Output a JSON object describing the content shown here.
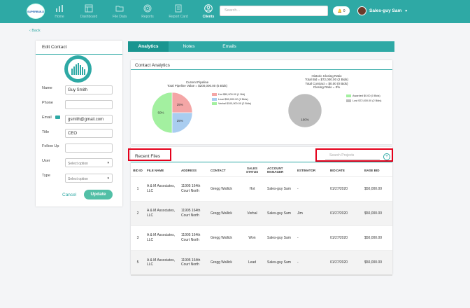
{
  "app": {
    "logo_text": "SUPERBUILD",
    "nav": [
      {
        "label": "Home",
        "icon": "home-chart-icon",
        "active": false
      },
      {
        "label": "Dashboard",
        "icon": "dashboard-icon",
        "active": false
      },
      {
        "label": "File Data",
        "icon": "folder-icon",
        "active": false
      },
      {
        "label": "Reports",
        "icon": "target-icon",
        "active": false
      },
      {
        "label": "Report Card",
        "icon": "report-card-icon",
        "active": false
      },
      {
        "label": "Clients",
        "icon": "user-icon",
        "active": true
      }
    ],
    "search_placeholder": "Search...",
    "notifications": "0",
    "user_name": "Sales-guy Sam"
  },
  "back_label": "Back",
  "edit_contact": {
    "title": "Edit Contact",
    "fields": {
      "name": {
        "label": "Name",
        "value": "Guy Smith"
      },
      "phone": {
        "label": "Phone",
        "value": ""
      },
      "email": {
        "label": "Email",
        "value": "gsmith@gmail.com"
      },
      "title": {
        "label": "Title",
        "value": "CEO"
      },
      "follow_up": {
        "label": "Follow Up",
        "value": ""
      },
      "user": {
        "label": "User",
        "value": "Select option"
      },
      "type": {
        "label": "Type",
        "value": "Select option"
      }
    },
    "cancel_label": "Cancel",
    "update_label": "Update"
  },
  "tabs": [
    {
      "label": "Analytics",
      "active": true
    },
    {
      "label": "Notes",
      "active": false
    },
    {
      "label": "Emails",
      "active": false
    }
  ],
  "contact_analytics": {
    "title": "Contact Analytics",
    "pipeline": {
      "title_line1": "Current Pipeline",
      "title_line2": "Total Pipeline Value = $200,000.00 (5 Bids)",
      "legend": [
        {
          "label": "Hot $50,000.00 (1 Bid)",
          "color": "#f4a6a6"
        },
        {
          "label": "Lead $50,000.00 (2 Bids)",
          "color": "#a9cdf0"
        },
        {
          "label": "Verbal $100,000.00 (2 Bids)",
          "color": "#a3f0a0"
        }
      ]
    },
    "closing": {
      "line1": "Historic Closing Ratio",
      "line2": "Total Bid = $72,000.00 (2 Bids)",
      "line3": "Total Contract = $0.00 (0 Bids)",
      "line4": "Closing Ratio = 0%",
      "legend": [
        {
          "label": "Awarded $0.00 (0 Bids)",
          "color": "#a3f0a0"
        },
        {
          "label": "Lost $72,000.00 (2 Bids)",
          "color": "#bdbdbd"
        }
      ]
    }
  },
  "chart_data": [
    {
      "type": "pie",
      "title": "Current Pipeline",
      "subtitle": "Total Pipeline Value = $200,000.00 (5 Bids)",
      "slices": [
        {
          "label": "Hot",
          "value": 25,
          "display": "25%",
          "color": "#f4a6a6"
        },
        {
          "label": "Lead",
          "value": 25,
          "display": "25%",
          "color": "#a9cdf0"
        },
        {
          "label": "Verbal",
          "value": 50,
          "display": "50%",
          "color": "#a3f0a0"
        }
      ]
    },
    {
      "type": "pie",
      "title": "Historic Closing Ratio",
      "slices": [
        {
          "label": "Awarded",
          "value": 0,
          "display": "",
          "color": "#a3f0a0"
        },
        {
          "label": "Lost",
          "value": 100,
          "display": "100%",
          "color": "#bdbdbd"
        }
      ]
    }
  ],
  "recent_files": {
    "title": "Recent Files",
    "search_placeholder": "Search Projects",
    "columns": [
      "BID ID",
      "FILE NAME",
      "ADDRESS",
      "CONTACT",
      "SALES STATUS",
      "ACCOUNT MANAGER",
      "ESTIMATOR",
      "BID DATE",
      "BASE BID"
    ],
    "rows": [
      {
        "bid": "1",
        "name": "A & M Associates, LLC",
        "addr": "11905 164th Court North",
        "contact": "Gregg Wallick",
        "status": "Hot",
        "am": "Sales-guy Sam",
        "est": "-",
        "date": "01/27/2020",
        "base": "$50,000.00"
      },
      {
        "bid": "2",
        "name": "A & M Associates, LLC",
        "addr": "11905 164th Court North",
        "contact": "Gregg Wallick",
        "status": "Verbal",
        "am": "Sales-guy Sam",
        "est": "Jim",
        "date": "01/27/2020",
        "base": "$50,000.00"
      },
      {
        "bid": "3",
        "name": "A & M Associates, LLC",
        "addr": "11905 164th Court North",
        "contact": "Gregg Wallick",
        "status": "Won",
        "am": "Sales-guy Sam",
        "est": "-",
        "date": "01/27/2020",
        "base": "$50,000.00"
      },
      {
        "bid": "5",
        "name": "A & M Associates, LLC",
        "addr": "11905 164th Court North",
        "contact": "Gregg Wallick",
        "status": "Lead",
        "am": "Sales-guy Sam",
        "est": "-",
        "date": "01/27/2020",
        "base": "$50,000.00"
      }
    ]
  },
  "colors": {
    "brand": "#2ea9a5",
    "highlight": "#e4001b",
    "button": "#52bfa6"
  }
}
